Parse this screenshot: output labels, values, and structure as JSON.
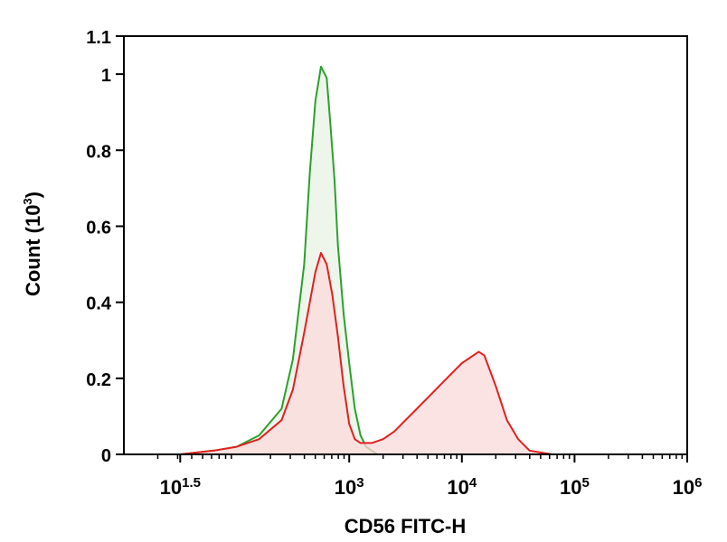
{
  "chart_data": {
    "type": "area",
    "xlabel": "CD56 FITC-H",
    "ylabel": "Count (10",
    "ylabel_sup": "3",
    "ylabel_close": ")",
    "x_scale": "log",
    "xlim": [
      1.0,
      6.0
    ],
    "ylim": [
      0,
      1.1
    ],
    "yticks": [
      {
        "value": 0,
        "label": "0"
      },
      {
        "value": 0.2,
        "label": "0.2"
      },
      {
        "value": 0.4,
        "label": "0.4"
      },
      {
        "value": 0.6,
        "label": "0.6"
      },
      {
        "value": 0.8,
        "label": "0.8"
      },
      {
        "value": 1.0,
        "label": "1"
      },
      {
        "value": 1.1,
        "label": "1.1"
      }
    ],
    "xticks": [
      {
        "value": 1.5,
        "base": "10",
        "exp": "1.5"
      },
      {
        "value": 3,
        "base": "10",
        "exp": "3"
      },
      {
        "value": 4,
        "base": "10",
        "exp": "4"
      },
      {
        "value": 5,
        "base": "10",
        "exp": "5"
      },
      {
        "value": 6,
        "base": "10",
        "exp": "6"
      }
    ],
    "grid": false,
    "legend": "none",
    "series": [
      {
        "color": "#2ca02c",
        "fill": "#e8f3e6",
        "x": [
          1.0,
          1.5,
          1.8,
          2.0,
          2.2,
          2.4,
          2.5,
          2.6,
          2.65,
          2.7,
          2.75,
          2.8,
          2.83,
          2.87,
          2.9,
          2.95,
          3.0,
          3.05,
          3.1,
          3.15,
          3.2,
          3.25,
          3.3,
          3.4
        ],
        "y": [
          0.0,
          0.0,
          0.01,
          0.02,
          0.05,
          0.12,
          0.25,
          0.5,
          0.74,
          0.93,
          1.02,
          0.99,
          0.88,
          0.72,
          0.55,
          0.37,
          0.24,
          0.12,
          0.05,
          0.02,
          0.01,
          0.0,
          0.0,
          0.0
        ]
      },
      {
        "color": "#e02020",
        "fill": "#fbdada",
        "x": [
          1.0,
          1.5,
          1.8,
          2.0,
          2.2,
          2.4,
          2.5,
          2.6,
          2.7,
          2.75,
          2.8,
          2.85,
          2.9,
          2.95,
          3.0,
          3.05,
          3.1,
          3.2,
          3.3,
          3.4,
          3.5,
          3.6,
          3.7,
          3.8,
          3.9,
          4.0,
          4.1,
          4.15,
          4.2,
          4.3,
          4.4,
          4.5,
          4.6,
          4.8,
          5.0
        ],
        "y": [
          0.0,
          0.0,
          0.01,
          0.02,
          0.04,
          0.09,
          0.17,
          0.32,
          0.48,
          0.53,
          0.5,
          0.42,
          0.31,
          0.18,
          0.08,
          0.04,
          0.03,
          0.03,
          0.04,
          0.06,
          0.09,
          0.12,
          0.15,
          0.18,
          0.21,
          0.24,
          0.26,
          0.27,
          0.26,
          0.18,
          0.09,
          0.04,
          0.01,
          0.0,
          0.0
        ]
      }
    ]
  }
}
